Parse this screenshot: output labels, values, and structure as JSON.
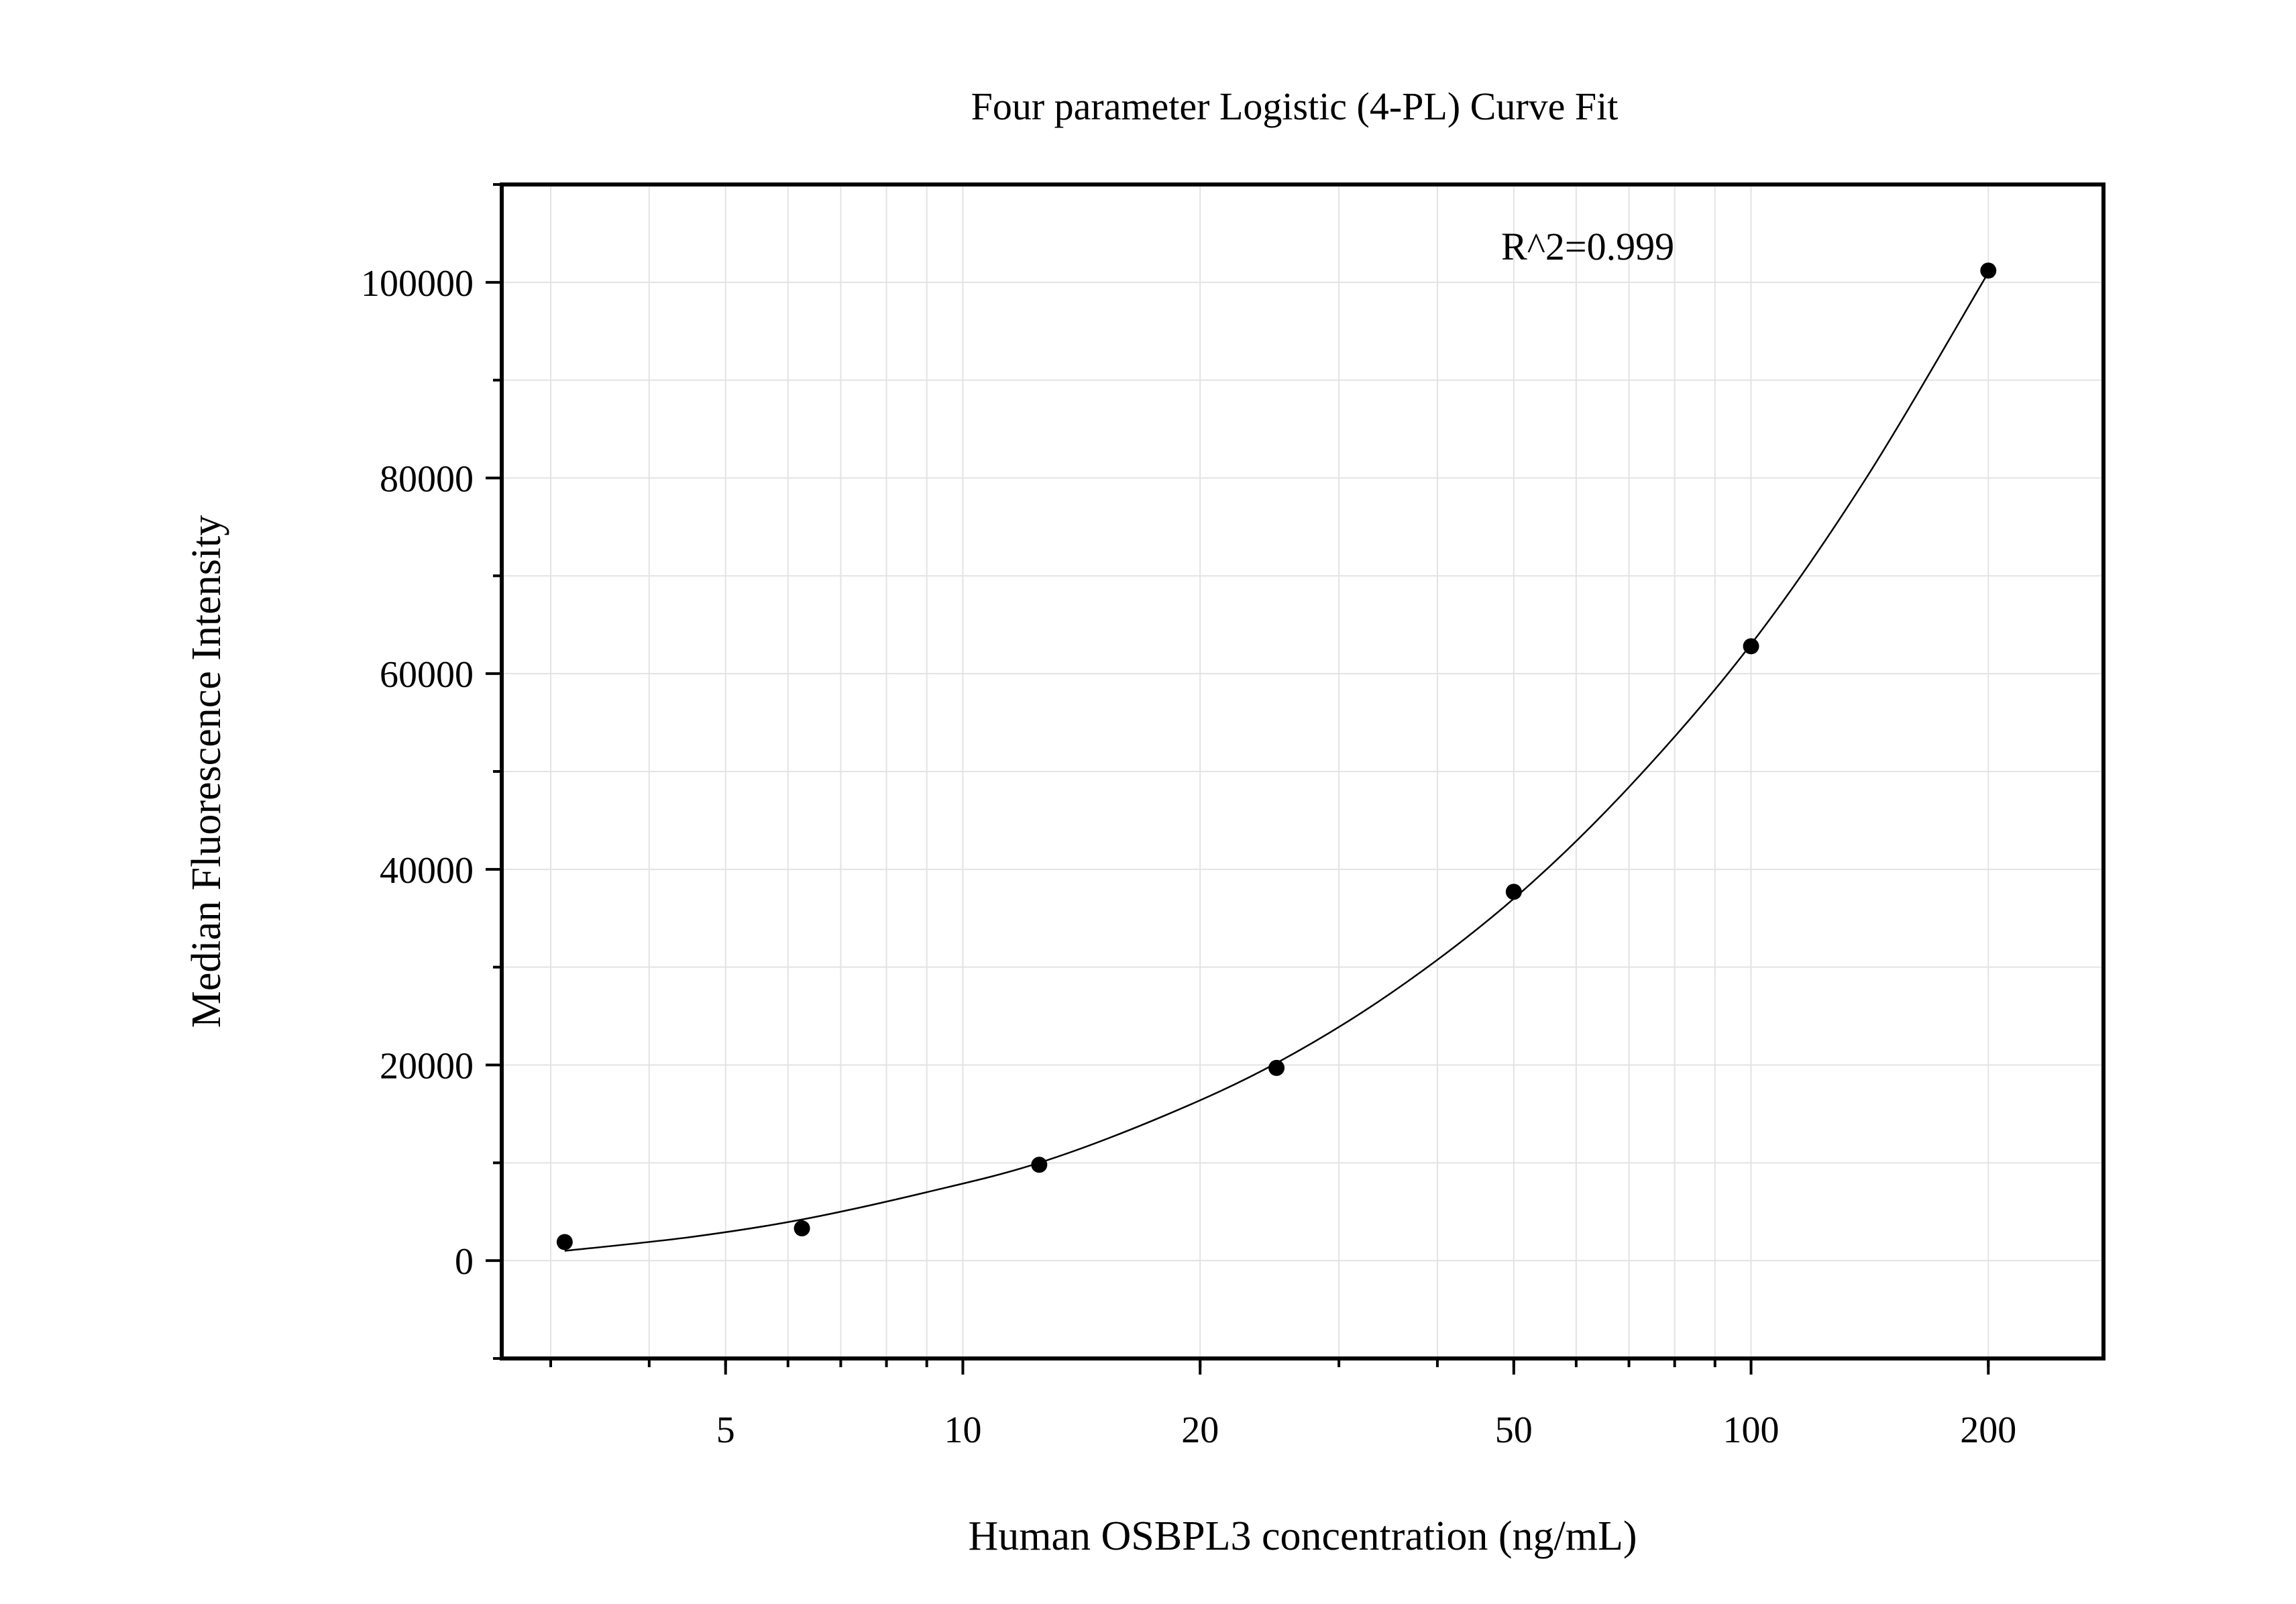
{
  "chart_data": {
    "type": "scatter",
    "title": "Four parameter Logistic (4-PL) Curve Fit",
    "xlabel": "Human OSBPL3 concentration (ng/mL)",
    "ylabel": "Median Fluorescence Intensity",
    "x_scale": "log",
    "xlim": [
      2.6,
      280
    ],
    "ylim": [
      -10000,
      110000
    ],
    "x_ticks": [
      5,
      10,
      20,
      50,
      100,
      200
    ],
    "x_tick_labels": [
      "5",
      "10",
      "20",
      "50",
      "100",
      "200"
    ],
    "y_ticks": [
      0,
      20000,
      40000,
      60000,
      80000,
      100000
    ],
    "y_tick_labels": [
      "0",
      "20000",
      "40000",
      "60000",
      "80000",
      "100000"
    ],
    "grid": true,
    "annotation": "R^2=0.999",
    "series": [
      {
        "points": [
          {
            "x": 3.125,
            "y": 1900
          },
          {
            "x": 6.25,
            "y": 3300
          },
          {
            "x": 12.5,
            "y": 9800
          },
          {
            "x": 25,
            "y": 19700
          },
          {
            "x": 50,
            "y": 37700
          },
          {
            "x": 100,
            "y": 62800
          },
          {
            "x": 200,
            "y": 101200
          }
        ]
      }
    ],
    "fit_curve": [
      {
        "x": 3.125,
        "y": 1000
      },
      {
        "x": 4.5,
        "y": 2400
      },
      {
        "x": 6.25,
        "y": 4200
      },
      {
        "x": 9,
        "y": 7000
      },
      {
        "x": 12.5,
        "y": 10000
      },
      {
        "x": 18,
        "y": 14800
      },
      {
        "x": 25,
        "y": 20200
      },
      {
        "x": 35,
        "y": 27400
      },
      {
        "x": 50,
        "y": 37000
      },
      {
        "x": 70,
        "y": 48400
      },
      {
        "x": 100,
        "y": 63000
      },
      {
        "x": 140,
        "y": 80000
      },
      {
        "x": 200,
        "y": 101000
      }
    ]
  }
}
